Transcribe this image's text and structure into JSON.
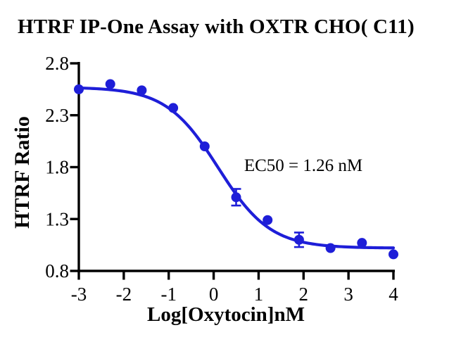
{
  "chart_data": {
    "type": "scatter",
    "title": "HTRF IP-One Assay with OXTR CHO( C11)",
    "xlabel": "Log[Oxytocin]nM",
    "ylabel": "HTRF Ratio",
    "annotation": "EC50 = 1.26 nM",
    "x": [
      -3,
      -2.3,
      -1.6,
      -0.9,
      -0.2,
      0.5,
      1.2,
      1.9,
      2.6,
      3.3,
      4
    ],
    "y": [
      2.55,
      2.6,
      2.54,
      2.37,
      2.0,
      1.51,
      1.29,
      1.1,
      1.02,
      1.07,
      0.96
    ],
    "y_error": [
      0,
      0,
      0,
      0,
      0,
      0.08,
      0,
      0.07,
      0,
      0,
      0
    ],
    "x_ticks": [
      -3,
      -2,
      -1,
      0,
      1,
      2,
      3,
      4
    ],
    "x_tick_labels": [
      "-3",
      "-2",
      "-1",
      "0",
      "1",
      "2",
      "3",
      "4"
    ],
    "y_ticks": [
      0.8,
      1.3,
      1.8,
      2.3,
      2.8
    ],
    "y_tick_labels": [
      "0.8",
      "1.3",
      "1.8",
      "2.3",
      "2.8"
    ],
    "xlim": [
      -3,
      4
    ],
    "ylim": [
      0.8,
      2.8
    ],
    "grid": false,
    "legend": "none",
    "fit_curve": {
      "model": "4PL sigmoid",
      "top": 2.57,
      "bottom": 1.02,
      "log_ec50": 0.1,
      "hill_slope": -0.75,
      "ec50_nM": 1.26
    },
    "colors": {
      "series": "#1e1ed8",
      "axis": "#000000",
      "text": "#000000"
    }
  }
}
